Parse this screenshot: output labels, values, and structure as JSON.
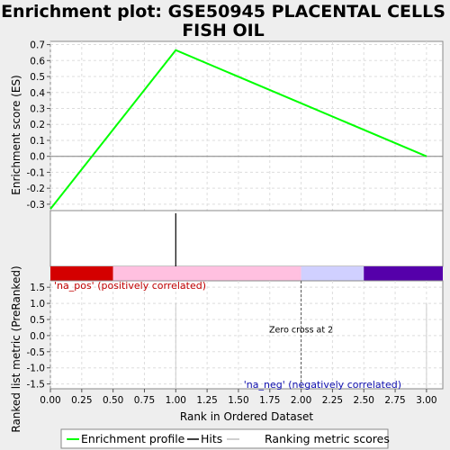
{
  "chart_data": {
    "type": "line",
    "title_line1": "Enrichment plot: GSE50945 PLACENTAL CELLS",
    "title_line2": "FISH OIL",
    "xlabel": "Rank in Ordered Dataset",
    "xlim": [
      0,
      3.13
    ],
    "x_ticks": [
      "0.00",
      "0.25",
      "0.50",
      "0.75",
      "1.00",
      "1.25",
      "1.50",
      "1.75",
      "2.00",
      "2.25",
      "2.50",
      "2.75",
      "3.00"
    ],
    "es_panel": {
      "ylabel": "Enrichment score (ES)",
      "ylim": [
        -0.34,
        0.72
      ],
      "y_ticks": [
        "0.7",
        "0.6",
        "0.5",
        "0.4",
        "0.3",
        "0.2",
        "0.1",
        "0.0",
        "-0.1",
        "-0.2",
        "-0.3"
      ],
      "series": [
        {
          "name": "Enrichment profile",
          "color": "#00ff00",
          "x": [
            0,
            1,
            3
          ],
          "y": [
            -0.33,
            0.665,
            0.0
          ]
        }
      ]
    },
    "hits_panel": {
      "hits_x": [
        1
      ]
    },
    "color_bar": [
      {
        "from": 0.0,
        "to": 0.5,
        "color": "#d40000"
      },
      {
        "from": 0.5,
        "to": 2.0,
        "color": "#ffc0e0"
      },
      {
        "from": 2.0,
        "to": 2.5,
        "color": "#d0d0ff"
      },
      {
        "from": 2.5,
        "to": 3.13,
        "color": "#5500aa"
      }
    ],
    "metric_panel": {
      "ylabel": "Ranked list metric (PreRanked)",
      "ylim": [
        -1.65,
        1.7
      ],
      "y_ticks": [
        "1.5",
        "1.0",
        "0.5",
        "0.0",
        "-0.5",
        "-1.0",
        "-1.5"
      ],
      "na_pos_label": "'na_pos' (positively correlated)",
      "na_neg_label": "'na_neg' (negatively correlated)",
      "zero_cross_label": "Zero cross at 2",
      "zero_cross_x": 2,
      "metric_bars_x": [
        1,
        3
      ]
    },
    "legend": [
      {
        "label": "Enrichment profile",
        "color": "#00ff00"
      },
      {
        "label": "Hits",
        "color": "#000000"
      },
      {
        "label": "Ranking metric scores",
        "color": "#c0c0c0"
      }
    ]
  }
}
